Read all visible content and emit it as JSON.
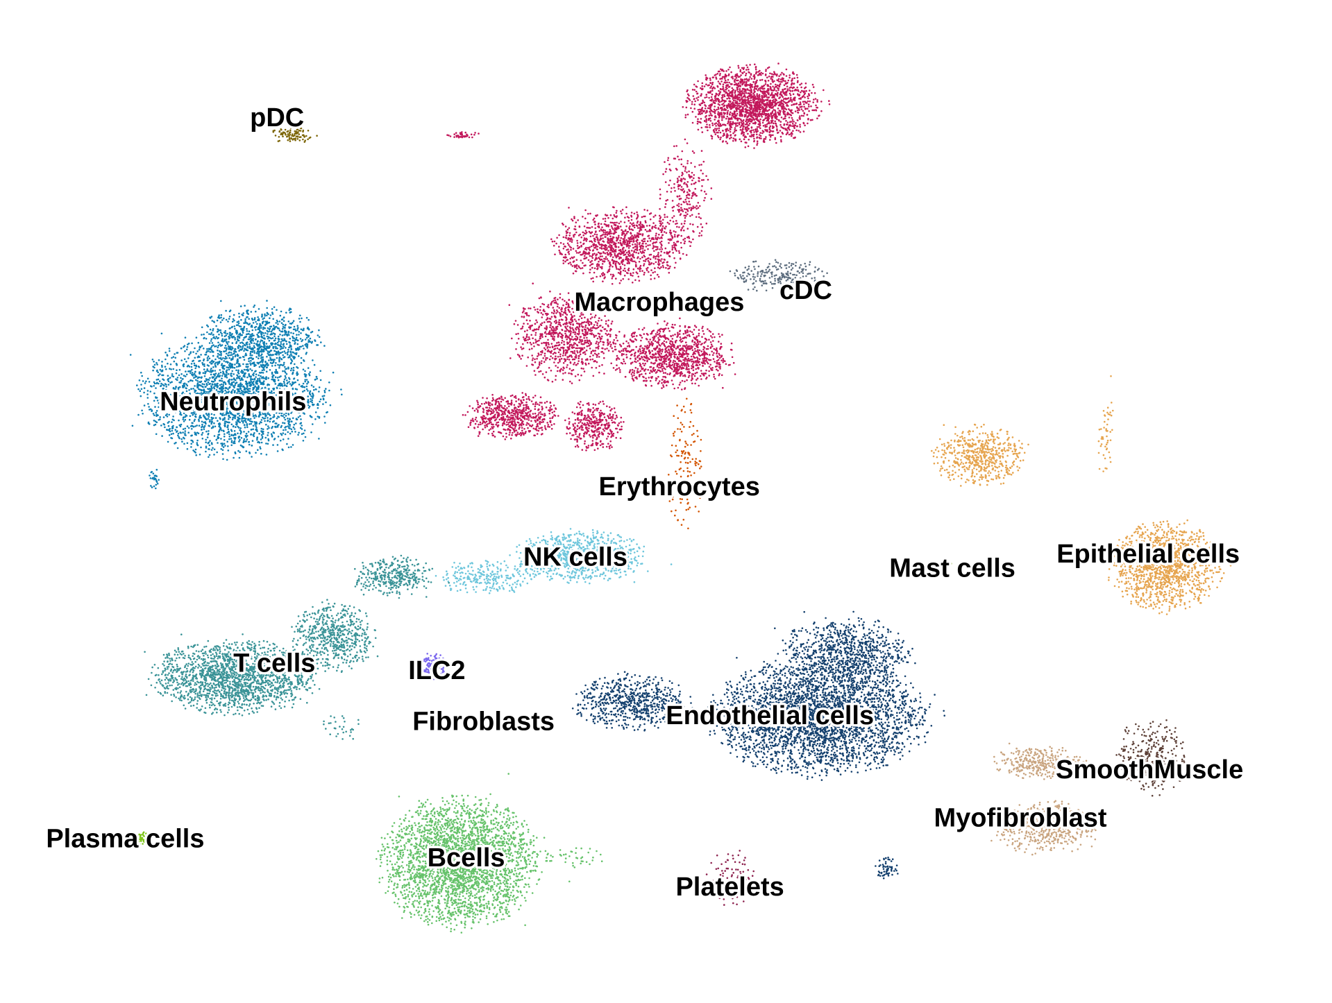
{
  "chart_data": {
    "type": "scatter",
    "title": "",
    "xlabel": "",
    "ylabel": "",
    "axes_visible": false,
    "grid": false,
    "legend": "none",
    "xlim": [
      0,
      100
    ],
    "ylim": [
      0,
      100
    ],
    "clusters": [
      {
        "name": "pDC",
        "color": "#7d6608",
        "label": {
          "x": 20.8,
          "y": 88.1
        },
        "blobs": [
          {
            "x": 22,
            "y": 86.5,
            "rx": 1.6,
            "ry": 0.7,
            "n": 90
          }
        ]
      },
      {
        "name": "Macrophages",
        "color": "#c2185b",
        "label": {
          "x": 49.5,
          "y": 69.7
        },
        "blobs": [
          {
            "x": 56.5,
            "y": 89.5,
            "rx": 4.6,
            "ry": 3.6,
            "n": 1900
          },
          {
            "x": 46.5,
            "y": 75.5,
            "rx": 4.6,
            "ry": 3.4,
            "n": 1100
          },
          {
            "x": 42.5,
            "y": 66.5,
            "rx": 3.6,
            "ry": 4.2,
            "n": 900
          },
          {
            "x": 50.5,
            "y": 64.5,
            "rx": 4.2,
            "ry": 3.0,
            "n": 1000
          },
          {
            "x": 38.5,
            "y": 58.5,
            "rx": 3.3,
            "ry": 2.1,
            "n": 600
          },
          {
            "x": 44.5,
            "y": 57.5,
            "rx": 2.1,
            "ry": 2.3,
            "n": 350
          },
          {
            "x": 51.5,
            "y": 80.5,
            "rx": 1.8,
            "ry": 5.0,
            "n": 250
          },
          {
            "x": 34.8,
            "y": 86.5,
            "rx": 1.3,
            "ry": 0.3,
            "n": 40
          }
        ]
      },
      {
        "name": "cDC",
        "color": "#5d6d7e",
        "label": {
          "x": 60.5,
          "y": 70.9
        },
        "blobs": [
          {
            "x": 58.5,
            "y": 72.5,
            "rx": 3.5,
            "ry": 1.5,
            "n": 220
          }
        ]
      },
      {
        "name": "Neutrophils",
        "color": "#0f7fb3",
        "label": {
          "x": 17.5,
          "y": 59.8
        },
        "blobs": [
          {
            "x": 17.5,
            "y": 60.5,
            "rx": 6.5,
            "ry": 5.6,
            "n": 2500
          },
          {
            "x": 19.5,
            "y": 66.5,
            "rx": 4.2,
            "ry": 2.8,
            "n": 700
          },
          {
            "x": 11.6,
            "y": 52.3,
            "rx": 0.4,
            "ry": 0.9,
            "n": 25
          }
        ]
      },
      {
        "name": "Erythrocytes",
        "color": "#d35400",
        "label": {
          "x": 51,
          "y": 51.3
        },
        "blobs": [
          {
            "x": 51.5,
            "y": 53.5,
            "rx": 1.3,
            "ry": 6.5,
            "n": 130
          }
        ]
      },
      {
        "name": "NK cells",
        "color": "#6ec6dc",
        "label": {
          "x": 43.2,
          "y": 44.3
        },
        "blobs": [
          {
            "x": 43.5,
            "y": 44.5,
            "rx": 4.6,
            "ry": 2.4,
            "n": 900
          },
          {
            "x": 36.5,
            "y": 42.5,
            "rx": 3.5,
            "ry": 1.6,
            "n": 250
          }
        ]
      },
      {
        "name": "Mast cells",
        "color": "#a9c470",
        "label": {
          "x": 71.5,
          "y": 43.2
        },
        "blobs": [
          {
            "x": 70.5,
            "y": 43.8,
            "rx": 1.0,
            "ry": 0.4,
            "n": 25
          }
        ]
      },
      {
        "name": "Epithelial cells",
        "color": "#e6a44e",
        "label": {
          "x": 86.2,
          "y": 44.6
        },
        "blobs": [
          {
            "x": 87.5,
            "y": 43.5,
            "rx": 3.9,
            "ry": 4.0,
            "n": 1300
          },
          {
            "x": 73.5,
            "y": 54.5,
            "rx": 3.2,
            "ry": 2.8,
            "n": 550
          },
          {
            "x": 83.0,
            "y": 56.5,
            "rx": 0.6,
            "ry": 4.0,
            "n": 50
          }
        ]
      },
      {
        "name": "T cells",
        "color": "#3a9397",
        "label": {
          "x": 20.6,
          "y": 33.7
        },
        "blobs": [
          {
            "x": 17.5,
            "y": 32.5,
            "rx": 5.6,
            "ry": 3.4,
            "n": 1800
          },
          {
            "x": 25.0,
            "y": 36.5,
            "rx": 3.0,
            "ry": 3.2,
            "n": 600
          },
          {
            "x": 29.5,
            "y": 42.5,
            "rx": 2.8,
            "ry": 1.9,
            "n": 350
          },
          {
            "x": 25.5,
            "y": 27.5,
            "rx": 1.5,
            "ry": 1.4,
            "n": 30
          }
        ]
      },
      {
        "name": "ILC2",
        "color": "#7b68ee",
        "label": {
          "x": 32.8,
          "y": 33
        },
        "blobs": [
          {
            "x": 32.5,
            "y": 33.5,
            "rx": 0.9,
            "ry": 1.3,
            "n": 120
          }
        ]
      },
      {
        "name": "Fibroblasts",
        "color": "#a93226",
        "label": {
          "x": 36.3,
          "y": 27.9
        },
        "blobs": [
          {
            "x": 36.3,
            "y": 28.2,
            "rx": 0.4,
            "ry": 0.4,
            "n": 6
          }
        ]
      },
      {
        "name": "Endothelial cells",
        "color": "#14406e",
        "label": {
          "x": 57.8,
          "y": 28.5
        },
        "blobs": [
          {
            "x": 61.5,
            "y": 28.5,
            "rx": 7.5,
            "ry": 5.3,
            "n": 3200
          },
          {
            "x": 63.5,
            "y": 35.0,
            "rx": 4.5,
            "ry": 3.2,
            "n": 800
          },
          {
            "x": 47.5,
            "y": 30.0,
            "rx": 4.1,
            "ry": 2.6,
            "n": 650
          },
          {
            "x": 66.5,
            "y": 13.5,
            "rx": 0.8,
            "ry": 1.0,
            "n": 60
          }
        ]
      },
      {
        "name": "Plasma cells",
        "color": "#7ec51a",
        "label": {
          "x": 9.4,
          "y": 16.2
        },
        "blobs": [
          {
            "x": 10.8,
            "y": 16.4,
            "rx": 0.6,
            "ry": 0.6,
            "n": 50
          }
        ]
      },
      {
        "name": "Bcells",
        "color": "#66c26b",
        "label": {
          "x": 35,
          "y": 14.3
        },
        "blobs": [
          {
            "x": 34.5,
            "y": 14.0,
            "rx": 5.5,
            "ry": 5.9,
            "n": 3000
          },
          {
            "x": 43.0,
            "y": 14.5,
            "rx": 2.2,
            "ry": 1.0,
            "n": 40
          }
        ]
      },
      {
        "name": "Platelets",
        "color": "#8e2450",
        "label": {
          "x": 54.8,
          "y": 11.4
        },
        "blobs": [
          {
            "x": 54.8,
            "y": 12.5,
            "rx": 1.6,
            "ry": 2.6,
            "n": 90
          }
        ]
      },
      {
        "name": "SmoothMuscle",
        "color": "#5d4037",
        "label": {
          "x": 86.3,
          "y": 23.1
        },
        "blobs": [
          {
            "x": 86.5,
            "y": 24.5,
            "rx": 2.6,
            "ry": 3.5,
            "n": 320
          }
        ]
      },
      {
        "name": "Myofibroblast",
        "color": "#c9a47f",
        "label": {
          "x": 76.6,
          "y": 18.3
        },
        "blobs": [
          {
            "x": 78.5,
            "y": 17.5,
            "rx": 3.5,
            "ry": 2.5,
            "n": 500
          },
          {
            "x": 78.0,
            "y": 24.0,
            "rx": 3.2,
            "ry": 1.5,
            "n": 320
          }
        ]
      }
    ]
  }
}
